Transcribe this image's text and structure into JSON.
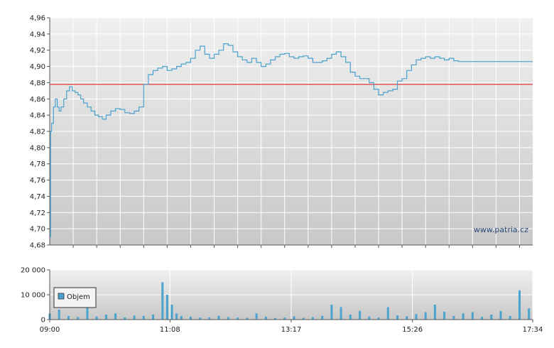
{
  "chart_data": [
    {
      "type": "line",
      "title": "",
      "xlabel": "",
      "ylabel": "",
      "ylim": [
        4.68,
        4.96
      ],
      "xlim": [
        "09:00",
        "17:34"
      ],
      "grid": true,
      "x_ticks": [
        "09:00",
        "11:08",
        "13:17",
        "15:26",
        "17:34"
      ],
      "y_ticks": [
        "4,68",
        "4,70",
        "4,72",
        "4,74",
        "4,76",
        "4,78",
        "4,80",
        "4,82",
        "4,84",
        "4,86",
        "4,88",
        "4,90",
        "4,92",
        "4,94",
        "4,96"
      ],
      "reference_line": {
        "value": 4.878,
        "color": "#e03a3a"
      },
      "series": [
        {
          "color": "#4aa3cf",
          "x": [
            "09:00",
            "09:01",
            "09:02",
            "09:04",
            "09:06",
            "09:08",
            "09:10",
            "09:12",
            "09:15",
            "09:18",
            "09:21",
            "09:24",
            "09:27",
            "09:30",
            "09:33",
            "09:36",
            "09:40",
            "09:44",
            "09:48",
            "09:52",
            "09:56",
            "10:00",
            "10:05",
            "10:10",
            "10:15",
            "10:20",
            "10:25",
            "10:30",
            "10:35",
            "10:40",
            "10:45",
            "10:50",
            "10:55",
            "11:00",
            "11:05",
            "11:10",
            "11:15",
            "11:20",
            "11:25",
            "11:30",
            "11:35",
            "11:40",
            "11:45",
            "11:50",
            "11:55",
            "12:00",
            "12:05",
            "12:10",
            "12:15",
            "12:20",
            "12:25",
            "12:30",
            "12:35",
            "12:40",
            "12:45",
            "12:50",
            "12:55",
            "13:00",
            "13:05",
            "13:10",
            "13:15",
            "13:20",
            "13:25",
            "13:30",
            "13:35",
            "13:40",
            "13:45",
            "13:50",
            "13:55",
            "14:00",
            "14:05",
            "14:10",
            "14:15",
            "14:20",
            "14:25",
            "14:30",
            "14:35",
            "14:40",
            "14:45",
            "14:50",
            "14:55",
            "15:00",
            "15:05",
            "15:10",
            "15:15",
            "15:20",
            "15:25",
            "15:30",
            "15:35",
            "15:40",
            "15:45",
            "15:50",
            "15:55",
            "16:00",
            "16:05",
            "16:10",
            "16:15",
            "16:20",
            "16:25",
            "16:30",
            "16:35",
            "16:40",
            "16:45",
            "16:50",
            "16:55",
            "17:00",
            "17:05",
            "17:10",
            "17:15",
            "17:20",
            "17:25",
            "17:30",
            "17:34"
          ],
          "values": [
            4.69,
            4.82,
            4.83,
            4.85,
            4.86,
            4.85,
            4.845,
            4.85,
            4.86,
            4.87,
            4.875,
            4.87,
            4.868,
            4.865,
            4.86,
            4.855,
            4.85,
            4.845,
            4.84,
            4.838,
            4.835,
            4.84,
            4.845,
            4.848,
            4.847,
            4.843,
            4.842,
            4.845,
            4.85,
            4.878,
            4.89,
            4.895,
            4.898,
            4.9,
            4.895,
            4.897,
            4.9,
            4.903,
            4.905,
            4.91,
            4.92,
            4.925,
            4.915,
            4.91,
            4.915,
            4.92,
            4.928,
            4.926,
            4.918,
            4.912,
            4.908,
            4.905,
            4.91,
            4.905,
            4.9,
            4.903,
            4.908,
            4.912,
            4.915,
            4.916,
            4.912,
            4.91,
            4.912,
            4.913,
            4.91,
            4.905,
            4.905,
            4.907,
            4.91,
            4.915,
            4.918,
            4.912,
            4.905,
            4.893,
            4.888,
            4.885,
            4.885,
            4.88,
            4.872,
            4.865,
            4.868,
            4.87,
            4.872,
            4.882,
            4.885,
            4.895,
            4.902,
            4.908,
            4.91,
            4.912,
            4.91,
            4.912,
            4.91,
            4.908,
            4.91,
            4.907,
            4.906,
            4.906,
            4.906,
            4.906,
            4.906,
            4.906,
            4.906,
            4.906,
            4.906,
            4.906,
            4.906,
            4.906,
            4.906,
            4.906,
            4.906,
            4.906,
            4.906
          ]
        }
      ],
      "watermark": "www.patria.cz"
    },
    {
      "type": "bar",
      "title": "",
      "xlabel": "",
      "ylabel": "",
      "ylim": [
        0,
        20000
      ],
      "xlim": [
        "09:00",
        "17:34"
      ],
      "grid": true,
      "x_ticks": [
        "09:00",
        "11:08",
        "13:17",
        "15:26",
        "17:34"
      ],
      "y_ticks": [
        "0",
        "10 000",
        "20 000"
      ],
      "legend": {
        "placement": "top-left"
      },
      "series": [
        {
          "name": "Objem",
          "color": "#4aa3cf",
          "x": [
            "09:00",
            "09:10",
            "09:20",
            "09:30",
            "09:40",
            "09:50",
            "10:00",
            "10:10",
            "10:20",
            "10:30",
            "10:40",
            "10:50",
            "11:00",
            "11:05",
            "11:10",
            "11:15",
            "11:20",
            "11:30",
            "11:40",
            "11:50",
            "12:00",
            "12:10",
            "12:20",
            "12:30",
            "12:40",
            "12:50",
            "13:00",
            "13:10",
            "13:20",
            "13:30",
            "13:40",
            "13:50",
            "14:00",
            "14:10",
            "14:20",
            "14:30",
            "14:40",
            "14:50",
            "15:00",
            "15:10",
            "15:20",
            "15:30",
            "15:40",
            "15:50",
            "16:00",
            "16:10",
            "16:20",
            "16:30",
            "16:40",
            "16:50",
            "17:00",
            "17:10",
            "17:20",
            "17:30"
          ],
          "values": [
            2500,
            4000,
            1500,
            1000,
            5000,
            1200,
            2000,
            2500,
            900,
            1600,
            1500,
            2000,
            15000,
            10000,
            6000,
            2500,
            1400,
            1200,
            800,
            900,
            1500,
            1000,
            800,
            700,
            2500,
            1200,
            600,
            800,
            1300,
            700,
            1000,
            1500,
            6000,
            5000,
            2000,
            3500,
            1200,
            800,
            5000,
            1700,
            1300,
            2200,
            3000,
            6000,
            3200,
            1500,
            2500,
            3000,
            1100,
            2000,
            3500,
            1500,
            11800,
            4500
          ]
        }
      ]
    }
  ]
}
